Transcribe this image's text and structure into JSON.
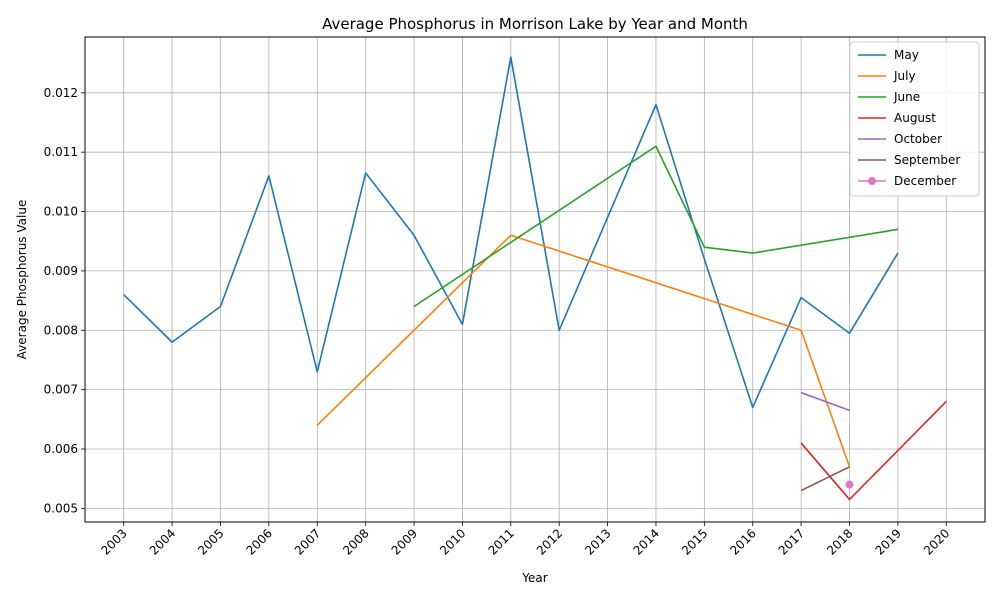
{
  "chart_data": {
    "type": "line",
    "title": "Average Phosphorus in Morrison Lake by Year and Month",
    "xlabel": "Year",
    "ylabel": "Average Phosphorus Value",
    "xlim": [
      2002.2,
      2020.8
    ],
    "ylim": [
      0.00477,
      0.01294
    ],
    "x_ticks": [
      2003,
      2004,
      2005,
      2006,
      2007,
      2008,
      2009,
      2010,
      2011,
      2012,
      2013,
      2014,
      2015,
      2016,
      2017,
      2018,
      2019,
      2020
    ],
    "x_tick_labels": [
      "2003",
      "2004",
      "2005",
      "2006",
      "2007",
      "2008",
      "2009",
      "2010",
      "2011",
      "2012",
      "2013",
      "2014",
      "2015",
      "2016",
      "2017",
      "2018",
      "2019",
      "2020"
    ],
    "y_ticks": [
      0.005,
      0.006,
      0.007,
      0.008,
      0.009,
      0.01,
      0.011,
      0.012
    ],
    "y_tick_labels": [
      "0.005",
      "0.006",
      "0.007",
      "0.008",
      "0.009",
      "0.010",
      "0.011",
      "0.012"
    ],
    "grid": true,
    "legend_position": "top-right",
    "series": [
      {
        "name": "May",
        "color": "#1f77b4",
        "marker": false,
        "x": [
          2003,
          2004,
          2005,
          2006,
          2007,
          2008,
          2009,
          2010,
          2011,
          2012,
          2013,
          2014,
          2015,
          2016,
          2017,
          2018,
          2019
        ],
        "y": [
          0.0086,
          0.0078,
          0.0084,
          0.0106,
          0.0073,
          0.01065,
          0.0096,
          0.0081,
          0.0126,
          0.008,
          0.0099,
          0.0118,
          0.0092,
          0.0067,
          0.00855,
          0.00795,
          0.0093
        ]
      },
      {
        "name": "July",
        "color": "#ff7f0e",
        "marker": false,
        "x": [
          2007,
          2011,
          2017,
          2018
        ],
        "y": [
          0.0064,
          0.0096,
          0.008,
          0.0057
        ]
      },
      {
        "name": "June",
        "color": "#2ca02c",
        "marker": false,
        "x": [
          2009,
          2014,
          2015,
          2016,
          2019
        ],
        "y": [
          0.0084,
          0.0111,
          0.0094,
          0.0093,
          0.0097
        ]
      },
      {
        "name": "August",
        "color": "#d62728",
        "marker": false,
        "x": [
          2017,
          2018,
          2020
        ],
        "y": [
          0.0061,
          0.00515,
          0.0068
        ]
      },
      {
        "name": "October",
        "color": "#9467bd",
        "marker": false,
        "x": [
          2017,
          2018
        ],
        "y": [
          0.00695,
          0.00665
        ]
      },
      {
        "name": "September",
        "color": "#8c564b",
        "marker": false,
        "x": [
          2017,
          2018
        ],
        "y": [
          0.0053,
          0.0057
        ]
      },
      {
        "name": "December",
        "color": "#e377c2",
        "marker": true,
        "x": [
          2018
        ],
        "y": [
          0.0054
        ]
      }
    ]
  }
}
